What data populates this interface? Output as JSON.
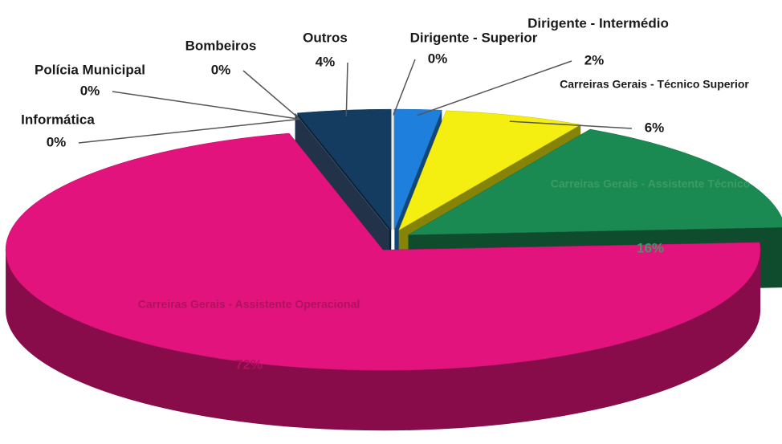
{
  "chart_data": {
    "type": "pie",
    "categories": [
      "Dirigente - Superior",
      "Dirigente - Intermédio",
      "Carreiras Gerais - Técnico Superior",
      "Carreiras Gerais - Assistente Técnico",
      "Carreiras Gerais - Assistente Operacional",
      "Informática",
      "Polícia Municipal",
      "Bombeiros",
      "Outros"
    ],
    "values": [
      0,
      2,
      6,
      16,
      72,
      0,
      0,
      0,
      4
    ],
    "value_labels": [
      "0%",
      "2%",
      "6%",
      "16%",
      "72%",
      "0%",
      "0%",
      "0%",
      "4%"
    ],
    "colors": [
      "#6aa8e8",
      "#1e80dc",
      "#f4ef10",
      "#1b8a52",
      "#e2137c",
      "#c8d4e4",
      "#8da4c4",
      "#3d5c84",
      "#133c60"
    ]
  }
}
